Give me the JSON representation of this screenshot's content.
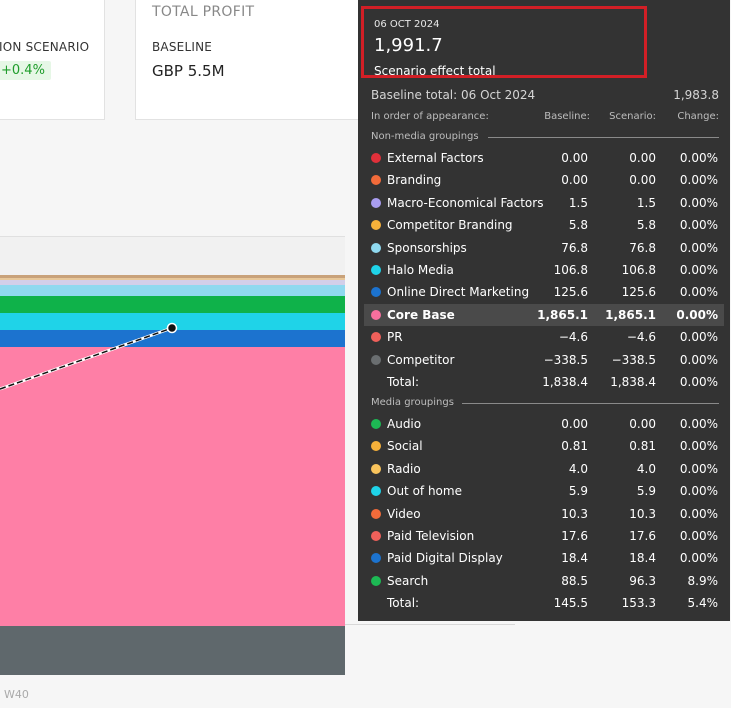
{
  "card_left": {
    "label": "ION SCENARIO",
    "badge": "+0.4%"
  },
  "card_right": {
    "title": "TOTAL PROFIT",
    "label": "BASELINE",
    "value": "GBP 5.5M"
  },
  "x_axis": {
    "week_label": "W40"
  },
  "colors": {
    "highlight_border": "#d21f26",
    "tooltip_bg": "#333333"
  },
  "tooltip": {
    "date": "06 OCT 2024",
    "big_value": "1,991.7",
    "big_value_label": "Scenario effect total",
    "baseline_total_label": "Baseline total: 06 Oct 2024",
    "baseline_total_value": "1,983.8",
    "headers": {
      "order": "In order of appearance:",
      "baseline": "Baseline:",
      "scenario": "Scenario:",
      "change": "Change:"
    },
    "non_media_label": "Non-media groupings",
    "non_media": [
      {
        "name": "External Factors",
        "color": "#e0303a",
        "baseline": "0.00",
        "scenario": "0.00",
        "change": "0.00%"
      },
      {
        "name": "Branding",
        "color": "#f26b3a",
        "baseline": "0.00",
        "scenario": "0.00",
        "change": "0.00%"
      },
      {
        "name": "Macro-Economical Factors",
        "color": "#a99df0",
        "baseline": "1.5",
        "scenario": "1.5",
        "change": "0.00%"
      },
      {
        "name": "Competitor Branding",
        "color": "#f7b13a",
        "baseline": "5.8",
        "scenario": "5.8",
        "change": "0.00%"
      },
      {
        "name": "Sponsorships",
        "color": "#8fd9ef",
        "baseline": "76.8",
        "scenario": "76.8",
        "change": "0.00%"
      },
      {
        "name": "Halo Media",
        "color": "#1fd3e8",
        "baseline": "106.8",
        "scenario": "106.8",
        "change": "0.00%"
      },
      {
        "name": "Online Direct Marketing",
        "color": "#1c73cf",
        "baseline": "125.6",
        "scenario": "125.6",
        "change": "0.00%"
      },
      {
        "name": "Core Base",
        "color": "#f76f9d",
        "baseline": "1,865.1",
        "scenario": "1,865.1",
        "change": "0.00%"
      },
      {
        "name": "PR",
        "color": "#f0605a",
        "baseline": "−4.6",
        "scenario": "−4.6",
        "change": "0.00%"
      },
      {
        "name": "Competitor",
        "color": "#6a6e70",
        "baseline": "−338.5",
        "scenario": "−338.5",
        "change": "0.00%"
      }
    ],
    "non_media_total": {
      "name": "Total:",
      "baseline": "1,838.4",
      "scenario": "1,838.4",
      "change": "0.00%"
    },
    "media_label": "Media groupings",
    "media": [
      {
        "name": "Audio",
        "color": "#1db954",
        "baseline": "0.00",
        "scenario": "0.00",
        "change": "0.00%"
      },
      {
        "name": "Social",
        "color": "#f7b13a",
        "baseline": "0.81",
        "scenario": "0.81",
        "change": "0.00%"
      },
      {
        "name": "Radio",
        "color": "#f9c45c",
        "baseline": "4.0",
        "scenario": "4.0",
        "change": "0.00%"
      },
      {
        "name": "Out of home",
        "color": "#1fd3e8",
        "baseline": "5.9",
        "scenario": "5.9",
        "change": "0.00%"
      },
      {
        "name": "Video",
        "color": "#f26b3a",
        "baseline": "10.3",
        "scenario": "10.3",
        "change": "0.00%"
      },
      {
        "name": "Paid Television",
        "color": "#f0605a",
        "baseline": "17.6",
        "scenario": "17.6",
        "change": "0.00%"
      },
      {
        "name": "Paid Digital Display",
        "color": "#1c73cf",
        "baseline": "18.4",
        "scenario": "18.4",
        "change": "0.00%"
      },
      {
        "name": "Search",
        "color": "#1db954",
        "baseline": "88.5",
        "scenario": "96.3",
        "change": "8.9%"
      }
    ],
    "media_total": {
      "name": "Total:",
      "baseline": "145.5",
      "scenario": "153.3",
      "change": "5.4%"
    }
  }
}
